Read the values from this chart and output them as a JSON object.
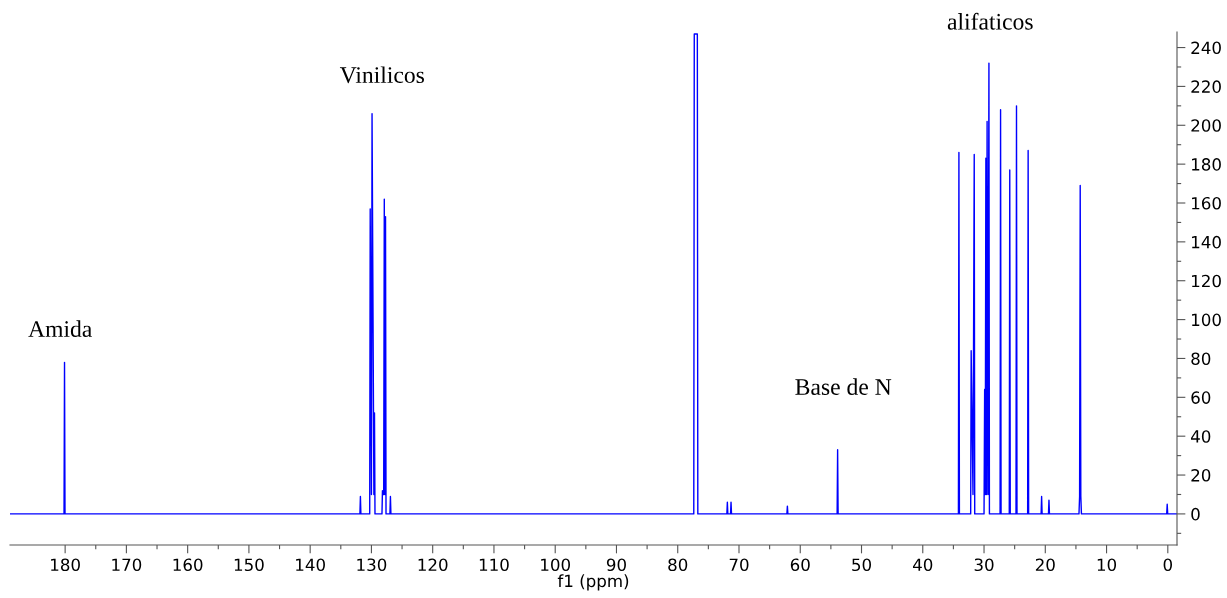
{
  "chart_data": {
    "type": "line",
    "xlabel": "f1 (ppm)",
    "x": [
      189,
      180.18,
      180.1,
      180.02,
      131.88,
      131.8,
      131.72,
      130.28,
      130.2,
      130.0,
      129.9,
      129.6,
      129.5,
      129.42,
      128.28,
      128.2,
      128.0,
      127.9,
      127.8,
      127.7,
      127.62,
      126.98,
      126.9,
      126.82,
      77.38,
      77.3,
      77.0,
      76.8,
      76.72,
      71.98,
      71.9,
      71.82,
      71.38,
      71.3,
      71.22,
      62.18,
      62.1,
      62.02,
      53.98,
      53.9,
      53.82,
      34.18,
      34.1,
      34.02,
      32.18,
      32.1,
      31.8,
      31.6,
      31.52,
      30.0,
      29.9,
      29.8,
      29.7,
      29.6,
      29.5,
      29.35,
      29.2,
      29.12,
      27.38,
      27.3,
      27.22,
      25.88,
      25.8,
      25.72,
      24.78,
      24.7,
      24.62,
      22.88,
      22.8,
      22.72,
      20.68,
      20.6,
      20.52,
      19.48,
      19.4,
      19.32,
      14.5,
      14.4,
      14.3,
      14.2,
      14.1,
      0.18,
      0.1,
      0.02,
      -1.5
    ],
    "series": [
      {
        "color": "#0000ff",
        "values": [
          0,
          0,
          78,
          0,
          0,
          9,
          0,
          0,
          157,
          10,
          206,
          10,
          52,
          0,
          0,
          12,
          10,
          162,
          10,
          153,
          0,
          0,
          9,
          0,
          0,
          247,
          247,
          247,
          0,
          0,
          6,
          0,
          0,
          6,
          0,
          0,
          4,
          0,
          0,
          33,
          0,
          0,
          186,
          0,
          0,
          84,
          10,
          185,
          0,
          0,
          64,
          10,
          183,
          10,
          202,
          10,
          232,
          0,
          0,
          208,
          0,
          0,
          177,
          0,
          0,
          210,
          0,
          0,
          187,
          0,
          0,
          9,
          0,
          0,
          7,
          0,
          0,
          9,
          169,
          9,
          0,
          0,
          5,
          0,
          0
        ]
      }
    ],
    "annotations": [
      "Amida",
      "Vinilicos",
      "Base de N",
      "alifaticos"
    ],
    "xlim": [
      189,
      -1.5
    ],
    "ylim": [
      -16,
      248
    ],
    "xticks": [
      180,
      {
        "value": 175,
        "label": null
      },
      170,
      {
        "value": 165,
        "label": null
      },
      160,
      {
        "value": 155,
        "label": null
      },
      150,
      {
        "value": 145,
        "label": null
      },
      140,
      {
        "value": 135,
        "label": null
      },
      130,
      {
        "value": 125,
        "label": null
      },
      120,
      {
        "value": 115,
        "label": null
      },
      110,
      {
        "value": 105,
        "label": null
      },
      100,
      {
        "value": 95,
        "label": null
      },
      90,
      {
        "value": 85,
        "label": null
      },
      80,
      {
        "value": 75,
        "label": null
      },
      70,
      {
        "value": 65,
        "label": null
      },
      60,
      {
        "value": 55,
        "label": null
      },
      50,
      {
        "value": 45,
        "label": null
      },
      40,
      {
        "value": 35,
        "label": null
      },
      30,
      {
        "value": 25,
        "label": null
      },
      20,
      {
        "value": 15,
        "label": null
      },
      10,
      {
        "value": 5,
        "label": null
      },
      0
    ],
    "yticks": [
      {
        "value": -10,
        "label": null
      },
      0,
      {
        "value": 10,
        "label": null
      },
      20,
      {
        "value": 30,
        "label": null
      },
      40,
      {
        "value": 50,
        "label": null
      },
      60,
      {
        "value": 70,
        "label": null
      },
      80,
      {
        "value": 90,
        "label": null
      },
      100,
      {
        "value": 110,
        "label": null
      },
      120,
      {
        "value": 130,
        "label": null
      },
      140,
      {
        "value": 150,
        "label": null
      },
      160,
      {
        "value": 170,
        "label": null
      },
      180,
      {
        "value": 190,
        "label": null
      },
      200,
      {
        "value": 210,
        "label": null
      },
      220,
      {
        "value": 230,
        "label": null
      },
      240
    ],
    "grid": false,
    "legend": false
  }
}
